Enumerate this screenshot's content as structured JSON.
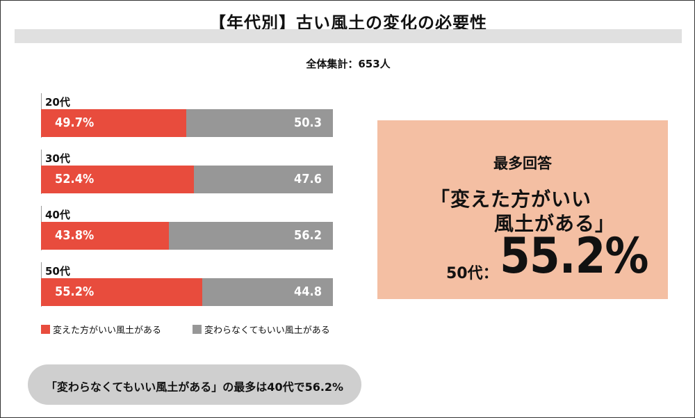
{
  "title": "【年代別】古い風土の変化の必要性",
  "subtitle": "全体集計：653人",
  "chart_data": {
    "type": "bar",
    "orientation": "horizontal-stacked-100",
    "categories": [
      "20代",
      "30代",
      "40代",
      "50代"
    ],
    "series": [
      {
        "name": "変えた方がいい風土がある",
        "values": [
          49.7,
          52.4,
          43.8,
          55.2
        ],
        "labels": [
          "49.7%",
          "52.4%",
          "43.8%",
          "55.2%"
        ],
        "color": "#e84c3d"
      },
      {
        "name": "変わらなくてもいい風土がある",
        "values": [
          50.3,
          47.6,
          56.2,
          44.8
        ],
        "labels": [
          "50.3",
          "47.6",
          "56.2",
          "44.8"
        ],
        "color": "#979797"
      }
    ],
    "xlim": [
      0,
      100
    ]
  },
  "legend": [
    {
      "label": "変えた方がいい風土がある",
      "color": "#e84c3d"
    },
    {
      "label": "変わらなくてもいい風土がある",
      "color": "#979797"
    }
  ],
  "callout": {
    "heading": "最多回答",
    "line1": "「変えた方がいい",
    "line2": "風土がある」",
    "age": "50代：",
    "value": "55.2%",
    "bg": "#f4bfa3"
  },
  "note": "「変わらなくてもいい風土がある」の最多は40代で56.2%"
}
